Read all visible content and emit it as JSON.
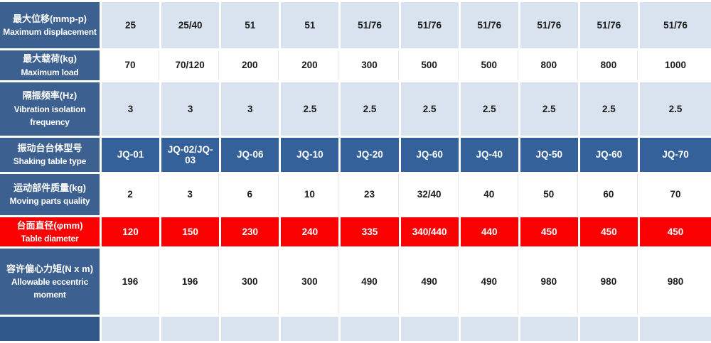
{
  "colors": {
    "header_blue": "#3c6090",
    "type_row_blue": "#35619a",
    "light_blue": "#d9e3ef",
    "highlight_red": "#fb0000",
    "partial_header_blue": "#2f5787",
    "data_text": "#1b1b1b"
  },
  "table": {
    "columns": 10,
    "rows": [
      {
        "id": "max-displacement",
        "label_zh": "最大位移(mmp-p)",
        "label_en": "Maximum displacement",
        "style": "lightblue",
        "values": [
          "25",
          "25/40",
          "51",
          "51",
          "51/76",
          "51/76",
          "51/76",
          "51/76",
          "51/76",
          "51/76"
        ]
      },
      {
        "id": "max-load",
        "label_zh": "最大载荷(kg)",
        "label_en": "Maximum load",
        "style": "white",
        "values": [
          "70",
          "70/120",
          "200",
          "200",
          "300",
          "500",
          "500",
          "800",
          "800",
          "1000"
        ]
      },
      {
        "id": "vibration-isolation-frequency",
        "label_zh": "隔振频率(Hz)",
        "label_en": "Vibration isolation frequency",
        "style": "lightblue",
        "values": [
          "3",
          "3",
          "3",
          "2.5",
          "2.5",
          "2.5",
          "2.5",
          "2.5",
          "2.5",
          "2.5"
        ]
      },
      {
        "id": "shaking-table-type",
        "label_zh": "振动台台体型号",
        "label_en": "Shaking table type",
        "style": "darkblue",
        "values": [
          "JQ-01",
          "JQ-02/JQ-03",
          "JQ-06",
          "JQ-10",
          "JQ-20",
          "JQ-60",
          "JQ-40",
          "JQ-50",
          "JQ-60",
          "JQ-70"
        ]
      },
      {
        "id": "moving-parts-quality",
        "label_zh": "运动部件质量(kg)",
        "label_en": "Moving parts quality",
        "style": "white",
        "values": [
          "2",
          "3",
          "6",
          "10",
          "23",
          "32/40",
          "40",
          "50",
          "60",
          "70"
        ]
      },
      {
        "id": "table-diameter",
        "label_zh": "台面直径(φmm)",
        "label_en": "Table diameter",
        "style": "red",
        "values": [
          "120",
          "150",
          "230",
          "240",
          "335",
          "340/440",
          "440",
          "450",
          "450",
          "450"
        ]
      },
      {
        "id": "allowable-eccentric-moment",
        "label_zh": "容许偏心力矩(N x m)",
        "label_en": "Allowable eccentric moment",
        "style": "white",
        "values": [
          "196",
          "196",
          "300",
          "300",
          "490",
          "490",
          "490",
          "980",
          "980",
          "980"
        ]
      },
      {
        "id": "next-row-partial",
        "label_zh": "",
        "label_en": "",
        "style": "partial",
        "values": [
          "",
          "",
          "",
          "",
          "",
          "",
          "",
          "",
          "",
          ""
        ]
      }
    ]
  }
}
